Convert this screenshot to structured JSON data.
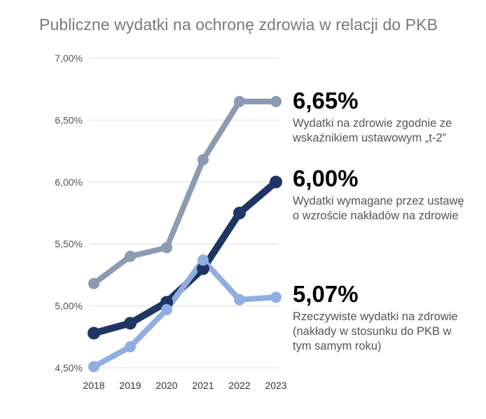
{
  "chart_data": {
    "type": "line",
    "title": "Publiczne wydatki na ochronę zdrowia w relacji do PKB",
    "xlabel": "",
    "ylabel": "",
    "categories": [
      "2018",
      "2019",
      "2020",
      "2021",
      "2022",
      "2023"
    ],
    "y_tick_labels": [
      "4,50%",
      "5,00%",
      "5,50%",
      "6,00%",
      "6,50%",
      "7,00%"
    ],
    "y_ticks": [
      4.5,
      5.0,
      5.5,
      6.0,
      6.5,
      7.0
    ],
    "ylim": [
      4.5,
      7.0
    ],
    "grid": true,
    "legend": "none",
    "series": [
      {
        "values": [
          5.18,
          5.4,
          5.47,
          6.18,
          6.65,
          6.65
        ],
        "color": "#8a9bb2",
        "annotation_value": "6,65%",
        "annotation_text": "Wydatki na zdrowie zgodnie ze\nwskaźnikiem ustawowym „t-2”"
      },
      {
        "values": [
          4.78,
          4.86,
          5.03,
          5.3,
          5.75,
          6.0
        ],
        "color": "#1f3664",
        "annotation_value": "6,00%",
        "annotation_text": "Wydatki wymagane przez ustawę\no wzroście nakładów na zdrowie"
      },
      {
        "values": [
          4.51,
          4.67,
          4.97,
          5.37,
          5.05,
          5.07
        ],
        "color": "#90aee0",
        "annotation_value": "5,07%",
        "annotation_text": "Rzeczywiste wydatki na zdrowie\n(nakłady w stosunku do PKB w\ntym samym roku)"
      }
    ]
  }
}
